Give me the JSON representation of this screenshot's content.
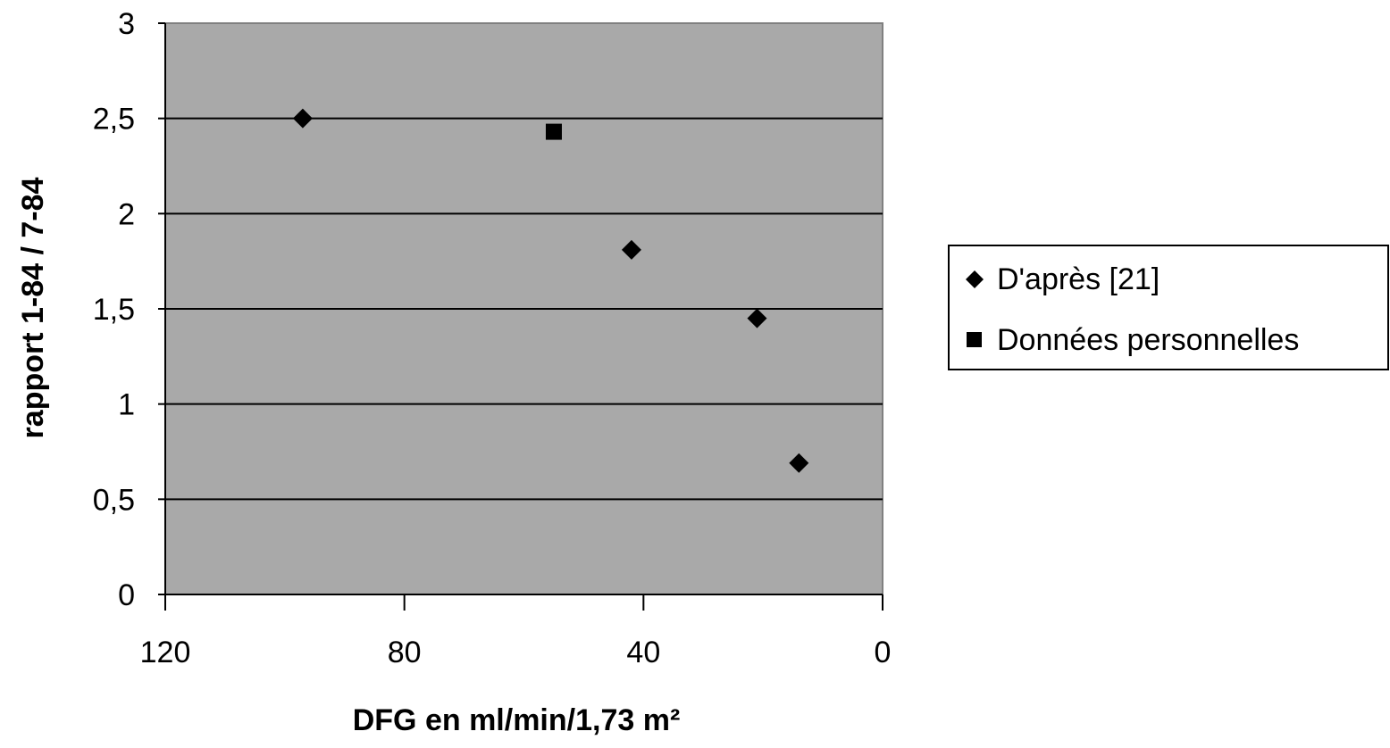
{
  "chart_data": {
    "type": "scatter",
    "xlabel": "DFG en ml/min/1,73 m²",
    "ylabel": "rapport 1-84 / 7-84",
    "xlim": [
      120,
      0
    ],
    "ylim": [
      0,
      3
    ],
    "x_reversed": true,
    "x_ticks": [
      120,
      80,
      40,
      0
    ],
    "x_tick_labels": [
      "120",
      "80",
      "40",
      "0"
    ],
    "y_ticks": [
      0,
      0.5,
      1,
      1.5,
      2,
      2.5,
      3
    ],
    "y_tick_labels": [
      "0",
      "0,5",
      "1",
      "1,5",
      "2",
      "2,5",
      "3"
    ],
    "grid": "horizontal",
    "plot_background": "#a9a9a9",
    "legend_position": "right",
    "series": [
      {
        "name": "D'après [21]",
        "marker": "diamond",
        "color": "#000000",
        "points": [
          {
            "x": 97,
            "y": 2.5
          },
          {
            "x": 42,
            "y": 1.81
          },
          {
            "x": 21,
            "y": 1.45
          },
          {
            "x": 14,
            "y": 0.69
          }
        ]
      },
      {
        "name": "Données personnelles",
        "marker": "square",
        "color": "#000000",
        "points": [
          {
            "x": 55,
            "y": 2.43
          }
        ]
      }
    ]
  }
}
